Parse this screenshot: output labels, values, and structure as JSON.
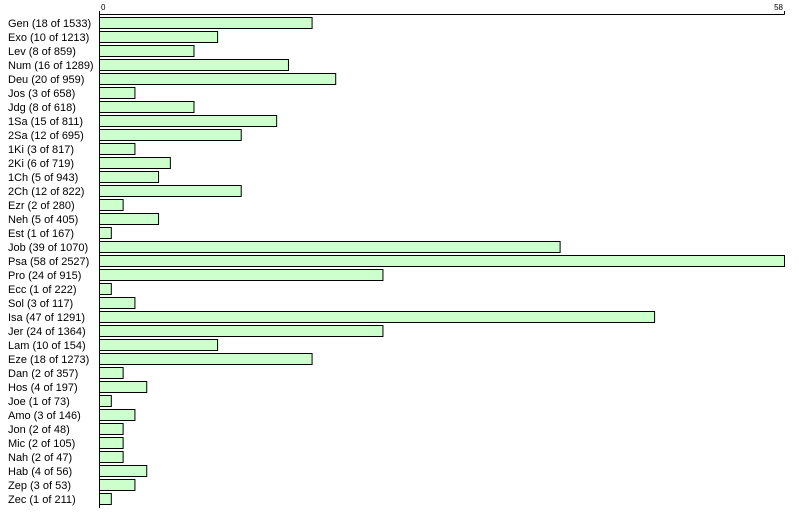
{
  "chart_data": {
    "type": "bar",
    "orientation": "horizontal",
    "categories": [
      "Gen (18 of 1533)",
      "Exo (10 of 1213)",
      "Lev (8 of 859)",
      "Num (16 of 1289)",
      "Deu (20 of 959)",
      "Jos (3 of 658)",
      "Jdg (8 of 618)",
      "1Sa (15 of 811)",
      "2Sa (12 of 695)",
      "1Ki (3 of 817)",
      "2Ki (6 of 719)",
      "1Ch (5 of 943)",
      "2Ch (12 of 822)",
      "Ezr (2 of 280)",
      "Neh (5 of 405)",
      "Est (1 of 167)",
      "Job (39 of 1070)",
      "Psa (58 of 2527)",
      "Pro (24 of 915)",
      "Ecc (1 of 222)",
      "Sol (3 of 117)",
      "Isa (47 of 1291)",
      "Jer (24 of 1364)",
      "Lam (10 of 154)",
      "Eze (18 of 1273)",
      "Dan (2 of 357)",
      "Hos (4 of 197)",
      "Joe (1 of 73)",
      "Amo (3 of 146)",
      "Jon (2 of 48)",
      "Mic (2 of 105)",
      "Nah (2 of 47)",
      "Hab (4 of 56)",
      "Zep (3 of 53)",
      "Zec (1 of 211)"
    ],
    "values": [
      18,
      10,
      8,
      16,
      20,
      3,
      8,
      15,
      12,
      3,
      6,
      5,
      12,
      2,
      5,
      1,
      39,
      58,
      24,
      1,
      3,
      47,
      24,
      10,
      18,
      2,
      4,
      1,
      3,
      2,
      2,
      2,
      4,
      3,
      1
    ],
    "xlim": [
      0,
      58
    ],
    "tick_labels": [
      "0",
      "58"
    ],
    "title": "",
    "xlabel": "",
    "ylabel": "",
    "grid": false,
    "legend": "none",
    "colors": {
      "bar_fill": "#ccffcc",
      "bar_stroke": "#000000",
      "background": "#ffffff"
    }
  }
}
